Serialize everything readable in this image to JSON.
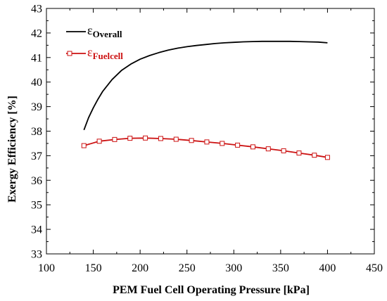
{
  "chart_data": {
    "type": "line",
    "xlabel": "PEM Fuel Cell Operating Pressure [kPa]",
    "ylabel": "Exergy Efficiency [%]",
    "xlim": [
      100,
      450
    ],
    "ylim": [
      33,
      43
    ],
    "x_ticks": [
      100,
      150,
      200,
      250,
      300,
      350,
      400,
      450
    ],
    "y_ticks": [
      33,
      34,
      35,
      36,
      37,
      38,
      39,
      40,
      41,
      42,
      43
    ],
    "grid": false,
    "legend_position": "top-left",
    "series": [
      {
        "name": "ε",
        "subscript": "Overall",
        "color": "#000000",
        "marker": "none",
        "x": [
          140,
          145,
          150,
          155,
          160,
          170,
          180,
          190,
          200,
          210,
          220,
          230,
          240,
          250,
          260,
          270,
          280,
          290,
          300,
          310,
          320,
          330,
          340,
          350,
          360,
          370,
          380,
          390,
          400
        ],
        "y": [
          38.05,
          38.55,
          38.95,
          39.3,
          39.62,
          40.1,
          40.47,
          40.73,
          40.93,
          41.08,
          41.2,
          41.3,
          41.38,
          41.44,
          41.49,
          41.53,
          41.57,
          41.6,
          41.62,
          41.64,
          41.65,
          41.66,
          41.66,
          41.66,
          41.66,
          41.65,
          41.64,
          41.63,
          41.6
        ]
      },
      {
        "name": "ε",
        "subscript": "Fuelcell",
        "color": "#cc1111",
        "marker": "square",
        "x": [
          140,
          156.4,
          172.8,
          189.2,
          205.6,
          222,
          238.4,
          254.8,
          271.2,
          287.6,
          304,
          320.4,
          336.8,
          353.2,
          369.6,
          386,
          400
        ],
        "y": [
          37.41,
          37.59,
          37.66,
          37.71,
          37.72,
          37.7,
          37.67,
          37.62,
          37.56,
          37.5,
          37.43,
          37.36,
          37.28,
          37.2,
          37.11,
          37.02,
          36.93
        ]
      }
    ]
  }
}
